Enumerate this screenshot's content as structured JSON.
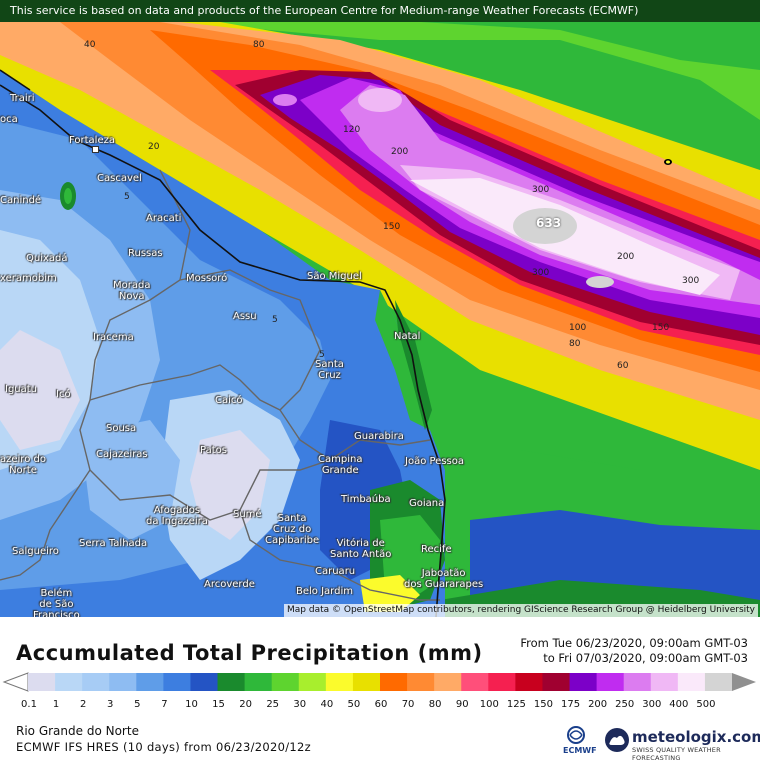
{
  "banner": "This service is based on data and products of the European Centre for Medium-range Weather Forecasts (ECMWF)",
  "attribution": "Map data © OpenStreetMap contributors, rendering GIScience Research Group @ Heidelberg University",
  "title": "Accumulated Total Precipitation (mm)",
  "period_from": "From Tue 06/23/2020, 09:00am GMT-03",
  "period_to": "to Fri 07/03/2020, 09:00am GMT-03",
  "region": "Rio Grande do Norte",
  "model": "ECMWF IFS HRES (10 days) from 06/23/2020/12z",
  "max_value": "633",
  "logos": {
    "ecmwf": "ECMWF",
    "brand": "meteologix.com",
    "tagline": "SWISS QUALITY WEATHER FORECASTING"
  },
  "scale": {
    "values": [
      "0.1",
      "1",
      "2",
      "3",
      "5",
      "7",
      "10",
      "15",
      "20",
      "25",
      "30",
      "40",
      "50",
      "60",
      "70",
      "80",
      "90",
      "100",
      "125",
      "150",
      "175",
      "200",
      "250",
      "300",
      "400",
      "500"
    ],
    "colors": [
      "#dcdcef",
      "#b9d7f6",
      "#a7ccf5",
      "#8ebcf2",
      "#5f9de8",
      "#3d7ee0",
      "#2454c4",
      "#1a8a2d",
      "#2fb83a",
      "#5ed42f",
      "#a8ee2d",
      "#fbfb2c",
      "#e8e000",
      "#ff6a00",
      "#ff8a33",
      "#ffaa66",
      "#ff4f7a",
      "#f52050",
      "#c8001e",
      "#a00030",
      "#7c00c8",
      "#c02cf0",
      "#dc7cf0",
      "#f0b8f5",
      "#fae9fa",
      "#d4d4d4"
    ]
  },
  "map": {
    "contours": [
      "40",
      "80",
      "20",
      "120",
      "200",
      "300",
      "633",
      "300",
      "200",
      "300",
      "100",
      "150",
      "80",
      "60",
      "5",
      "5",
      "5",
      "150"
    ],
    "cities": [
      {
        "name": "Trairi"
      },
      {
        "name": "oca"
      },
      {
        "name": "Fortaleza"
      },
      {
        "name": "Cascavel"
      },
      {
        "name": "Canindé"
      },
      {
        "name": "Aracati"
      },
      {
        "name": "Russas"
      },
      {
        "name": "Quixadá"
      },
      {
        "name": "xeramobim"
      },
      {
        "name": "Morada\nNova"
      },
      {
        "name": "Mossoró"
      },
      {
        "name": "São Miguel"
      },
      {
        "name": "Assu"
      },
      {
        "name": "Natal"
      },
      {
        "name": "Iracema"
      },
      {
        "name": "Santa\nCruz"
      },
      {
        "name": "Iguatu"
      },
      {
        "name": "Icó"
      },
      {
        "name": "Caicó"
      },
      {
        "name": "Sousa"
      },
      {
        "name": "Cajazeiras"
      },
      {
        "name": "Patos"
      },
      {
        "name": "Guarabira"
      },
      {
        "name": "João Pessoa"
      },
      {
        "name": "Campina\nGrande"
      },
      {
        "name": "azeiro do\nNorte"
      },
      {
        "name": "Timbaúba"
      },
      {
        "name": "Goiana"
      },
      {
        "name": "Afogados\nda Ingazeira"
      },
      {
        "name": "Sumé"
      },
      {
        "name": "Santa\nCruz do\nCapibaribe"
      },
      {
        "name": "Salgueiro"
      },
      {
        "name": "Serra Talhada"
      },
      {
        "name": "Vitória de\nSanto Antão"
      },
      {
        "name": "Recife"
      },
      {
        "name": "Caruaru"
      },
      {
        "name": "Jaboatão\ndos Guararapes"
      },
      {
        "name": "Arcoverde"
      },
      {
        "name": "Belo Jardim"
      },
      {
        "name": "Belém\nde São\nFrancisco"
      }
    ]
  }
}
